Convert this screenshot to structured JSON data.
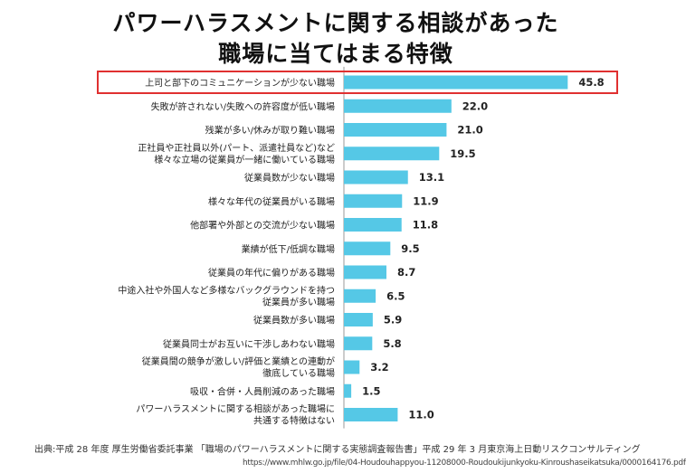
{
  "title_lines": [
    "パワーハラスメントに関する相談があった",
    "職場に当てはまる特徴"
  ],
  "source": {
    "line1": "出典:平成 28 年度 厚生労働省委託事業 「職場のパワーハラスメントに関する実態調査報告書」平成 29 年 3 月東京海上日動リスクコンサルティング",
    "line2": "https://www.mhlw.go.jp/file/04-Houdouhappyou-11208000-Roudoukijunkyoku-Kinroushaseikatsuka/0000164176.pdf"
  },
  "colors": {
    "bar": "#55c8e6",
    "highlight_box": "#e03030",
    "axis": "#999999"
  },
  "chart_data": {
    "type": "bar",
    "orientation": "horizontal",
    "xlim": [
      0,
      50
    ],
    "highlight_index": 0,
    "categories": [
      [
        "上司と部下のコミュニケーションが少ない職場"
      ],
      [
        "失敗が許されない/失敗への許容度が低い職場"
      ],
      [
        "残業が多い/休みが取り難い職場"
      ],
      [
        "正社員や正社員以外(パート、派遣社員など)など",
        "様々な立場の従業員が一緒に働いている職場"
      ],
      [
        "従業員数が少ない職場"
      ],
      [
        "様々な年代の従業員がいる職場"
      ],
      [
        "他部署や外部との交流が少ない職場"
      ],
      [
        "業績が低下/低調な職場"
      ],
      [
        "従業員の年代に偏りがある職場"
      ],
      [
        "中途入社や外国人など多様なバックグラウンドを持つ",
        "従業員が多い職場"
      ],
      [
        "従業員数が多い職場"
      ],
      [
        "従業員同士がお互いに干渉しあわない職場"
      ],
      [
        "従業員間の競争が激しい/評価と業績との連動が",
        "徹底している職場"
      ],
      [
        "吸収・合併・人員削減のあった職場"
      ],
      [
        "パワーハラスメントに関する相談があった職場に",
        "共通する特徴はない"
      ]
    ],
    "values": [
      45.8,
      22.0,
      21.0,
      19.5,
      13.1,
      11.9,
      11.8,
      9.5,
      8.7,
      6.5,
      5.9,
      5.8,
      3.2,
      1.5,
      11.0
    ],
    "value_labels": [
      "45.8",
      "22.0",
      "21.0",
      "19.5",
      "13.1",
      "11.9",
      "11.8",
      "9.5",
      "8.7",
      "6.5",
      "5.9",
      "5.8",
      "3.2",
      "1.5",
      "11.0"
    ]
  }
}
